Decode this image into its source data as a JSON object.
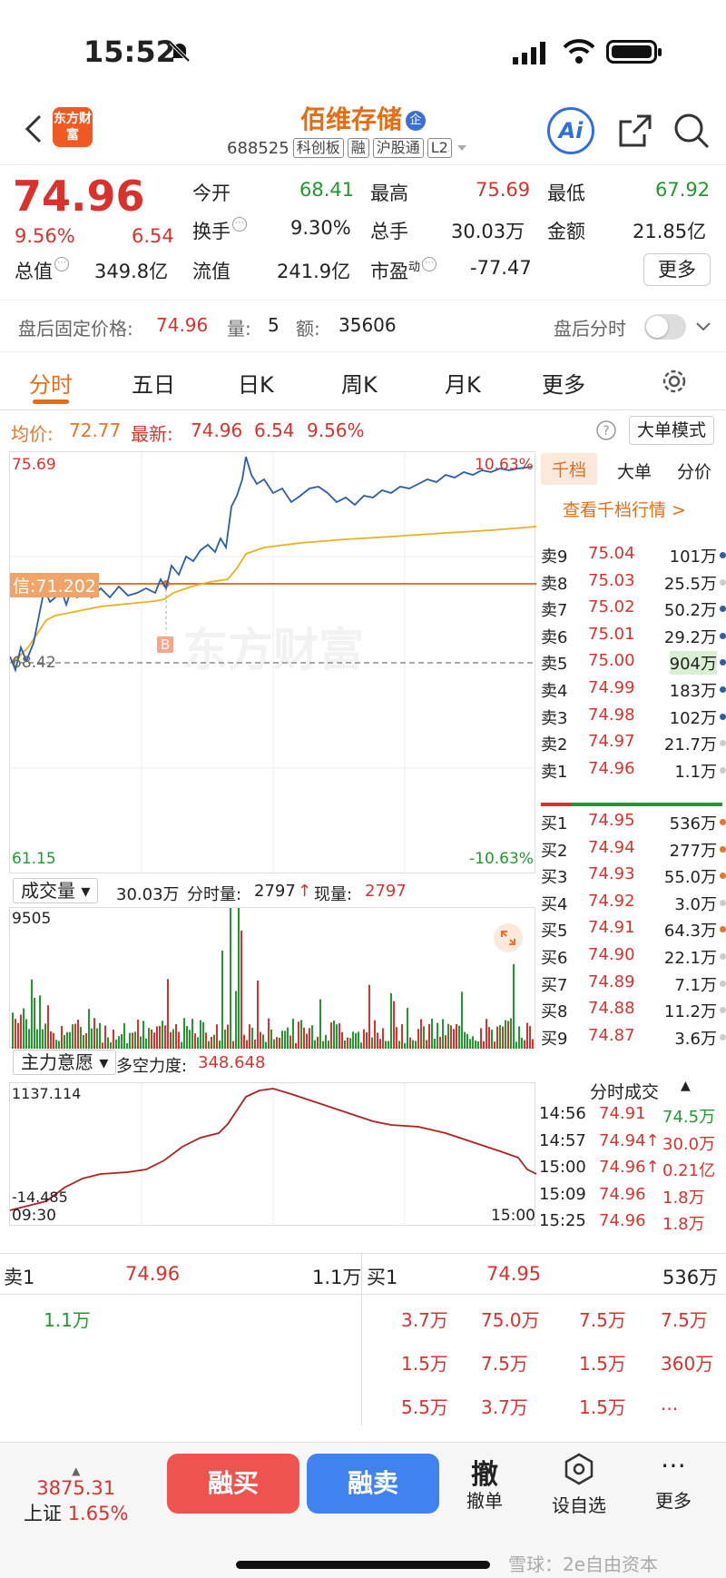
{
  "status": {
    "time": "15:52"
  },
  "header": {
    "logo_text": "东方财富",
    "stock_name": "佰维存储",
    "stock_badge": "企",
    "code": "688525",
    "tags": [
      "科创板",
      "融",
      "沪股通",
      "L2"
    ],
    "ai_label": "Ai"
  },
  "quote": {
    "price": "74.96",
    "pct": "9.56%",
    "change": "6.54",
    "items": [
      {
        "label": "今开",
        "value": "68.41",
        "color": "#1f9a2c"
      },
      {
        "label": "最高",
        "value": "75.69",
        "color": "#d9322d"
      },
      {
        "label": "最低",
        "value": "67.92",
        "color": "#1f9a2c"
      },
      {
        "label": "换手",
        "value": "9.30%",
        "color": "#222"
      },
      {
        "label": "总手",
        "value": "30.03万",
        "color": "#222"
      },
      {
        "label": "金额",
        "value": "21.85亿",
        "color": "#222"
      },
      {
        "label": "总值",
        "value": "349.8亿",
        "color": "#222"
      },
      {
        "label": "流值",
        "value": "241.9亿",
        "color": "#222"
      },
      {
        "label": "市盈",
        "sup": "动",
        "value": "-77.47",
        "color": "#222"
      }
    ],
    "more": "更多"
  },
  "after_hours": {
    "label": "盘后固定价格:",
    "price": "74.96",
    "vol_label": "量:",
    "vol": "5",
    "amt_label": "额:",
    "amt": "35606",
    "timeshare": "盘后分时"
  },
  "tabs": [
    "分时",
    "五日",
    "日K",
    "周K",
    "月K",
    "更多"
  ],
  "info": {
    "avg_label": "均价:",
    "avg": "72.77",
    "latest_label": "最新:",
    "latest": "74.96",
    "change": "6.54",
    "pct": "9.56%",
    "big_mode": "大单模式"
  },
  "chart": {
    "y_top": "75.69",
    "y_bottom": "61.15",
    "pct_top": "10.63%",
    "pct_bottom": "-10.63%",
    "prev_close": "68.42",
    "signal": "信:71.202",
    "buy_marker": "B",
    "watermark": "东方财富",
    "colors": {
      "price": "#2a5ea8",
      "avg": "#e8b21c",
      "signal": "#e8742a",
      "up": "#d9322d",
      "down": "#1f9a2c"
    }
  },
  "book": {
    "tabs": [
      "千档",
      "大单",
      "分价"
    ],
    "link": "查看千档行情 >",
    "asks": [
      {
        "label": "卖9",
        "price": "75.04",
        "vol": "101万",
        "dot": "#2a5ea8"
      },
      {
        "label": "卖8",
        "price": "75.03",
        "vol": "25.5万",
        "dot": "#ccc"
      },
      {
        "label": "卖7",
        "price": "75.02",
        "vol": "50.2万",
        "dot": "#2a5ea8"
      },
      {
        "label": "卖6",
        "price": "75.01",
        "vol": "29.2万",
        "dot": "#2a5ea8"
      },
      {
        "label": "卖5",
        "price": "75.00",
        "vol": "904万",
        "dot": "#2a5ea8"
      },
      {
        "label": "卖4",
        "price": "74.99",
        "vol": "183万",
        "dot": "#2a5ea8"
      },
      {
        "label": "卖3",
        "price": "74.98",
        "vol": "102万",
        "dot": "#2a5ea8"
      },
      {
        "label": "卖2",
        "price": "74.97",
        "vol": "21.7万",
        "dot": "#ccc"
      },
      {
        "label": "卖1",
        "price": "74.96",
        "vol": "1.1万",
        "dot": "#ccc"
      }
    ],
    "bids": [
      {
        "label": "买1",
        "price": "74.95",
        "vol": "536万",
        "dot": "#e8742a"
      },
      {
        "label": "买2",
        "price": "74.94",
        "vol": "277万",
        "dot": "#e8742a"
      },
      {
        "label": "买3",
        "price": "74.93",
        "vol": "55.0万",
        "dot": "#e8742a"
      },
      {
        "label": "买4",
        "price": "74.92",
        "vol": "3.0万",
        "dot": "#ccc"
      },
      {
        "label": "买5",
        "price": "74.91",
        "vol": "64.3万",
        "dot": "#e8742a"
      },
      {
        "label": "买6",
        "price": "74.90",
        "vol": "22.1万",
        "dot": "#ccc"
      },
      {
        "label": "买7",
        "price": "74.89",
        "vol": "7.1万",
        "dot": "#ccc"
      },
      {
        "label": "买8",
        "price": "74.88",
        "vol": "11.2万",
        "dot": "#ccc"
      },
      {
        "label": "买9",
        "price": "74.87",
        "vol": "3.6万",
        "dot": "#ccc"
      }
    ]
  },
  "volume": {
    "selector": "成交量",
    "total": "30.03万",
    "tick_label": "分时量:",
    "tick": "2797",
    "now_label": "现量:",
    "now": "2797",
    "max": "9505"
  },
  "main_force": {
    "selector": "主力意愿",
    "label": "多空力度:",
    "value": "348.648",
    "y_top": "1137.114",
    "y_bottom": "-14.485",
    "x_start": "09:30",
    "x_end": "15:00"
  },
  "trades": {
    "title": "分时成交",
    "rows": [
      {
        "time": "14:56",
        "price": "74.91",
        "vol": "74.5万",
        "color": "#1f9a2c"
      },
      {
        "time": "14:57",
        "price": "74.94↑",
        "vol": "30.0万",
        "color": "#d9322d"
      },
      {
        "time": "15:00",
        "price": "74.96↑",
        "vol": "0.21亿",
        "color": "#d9322d"
      },
      {
        "time": "15:09",
        "price": "74.96",
        "vol": "1.8万",
        "color": "#d9322d"
      },
      {
        "time": "15:25",
        "price": "74.96",
        "vol": "1.8万",
        "color": "#d9322d"
      }
    ]
  },
  "level1": {
    "sell_label": "卖1",
    "sell_price": "74.96",
    "sell_vol": "1.1万",
    "buy_label": "买1",
    "buy_price": "74.95",
    "buy_vol": "536万",
    "sell_queue": [
      "1.1万"
    ],
    "buy_queue": [
      "3.7万",
      "75.0万",
      "7.5万",
      "7.5万",
      "1.5万",
      "7.5万",
      "1.5万",
      "360万",
      "5.5万",
      "3.7万",
      "1.5万",
      "..."
    ]
  },
  "footer": {
    "index_value": "3875.31",
    "index_name": "上证",
    "index_pct": "1.65%",
    "buy": "融买",
    "sell": "融卖",
    "cancel_icon": "撤",
    "cancel": "撤单",
    "watch": "设自选",
    "more": "更多",
    "watermark": "雪球：2e自由资本"
  }
}
